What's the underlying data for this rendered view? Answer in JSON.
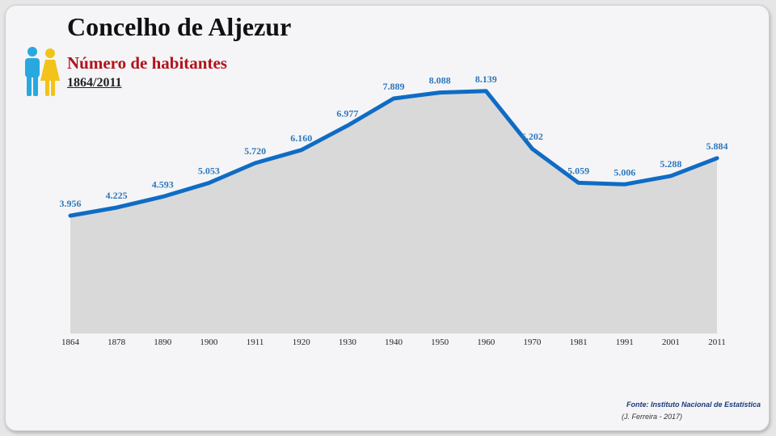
{
  "header": {
    "title": "Concelho de Aljezur",
    "subtitle": "Número de habitantes",
    "period": "1864/2011",
    "icon": "people-icon"
  },
  "footer": {
    "source": "Fonte: Instituto Nacional de Estatística",
    "credit": "(J. Ferreira - 2017)"
  },
  "colors": {
    "line": "#0f6cc4",
    "area": "#d9d9d9",
    "labels": "#2c78bd",
    "title_accent": "#b3121b",
    "male_icon": "#29a8e0",
    "female_icon": "#f2c318"
  },
  "chart_data": {
    "type": "area",
    "title": "Concelho de Aljezur",
    "subtitle": "Número de habitantes",
    "xlabel": "",
    "ylabel": "",
    "grid": false,
    "legend": "none",
    "ylim": [
      0,
      9000
    ],
    "categories": [
      "1864",
      "1878",
      "1890",
      "1900",
      "1911",
      "1920",
      "1930",
      "1940",
      "1950",
      "1960",
      "1970",
      "1981",
      "1991",
      "2001",
      "2011"
    ],
    "series": [
      {
        "values": [
          3956,
          4225,
          4593,
          5053,
          5720,
          6160,
          6977,
          7889,
          8088,
          8139,
          6202,
          5059,
          5006,
          5288,
          5884
        ],
        "labels": [
          "3.956",
          "4.225",
          "4.593",
          "5.053",
          "5.720",
          "6.160",
          "6.977",
          "7.889",
          "8.088",
          "8.139",
          "6.202",
          "5.059",
          "5.006",
          "5.288",
          "5.884"
        ]
      }
    ]
  }
}
